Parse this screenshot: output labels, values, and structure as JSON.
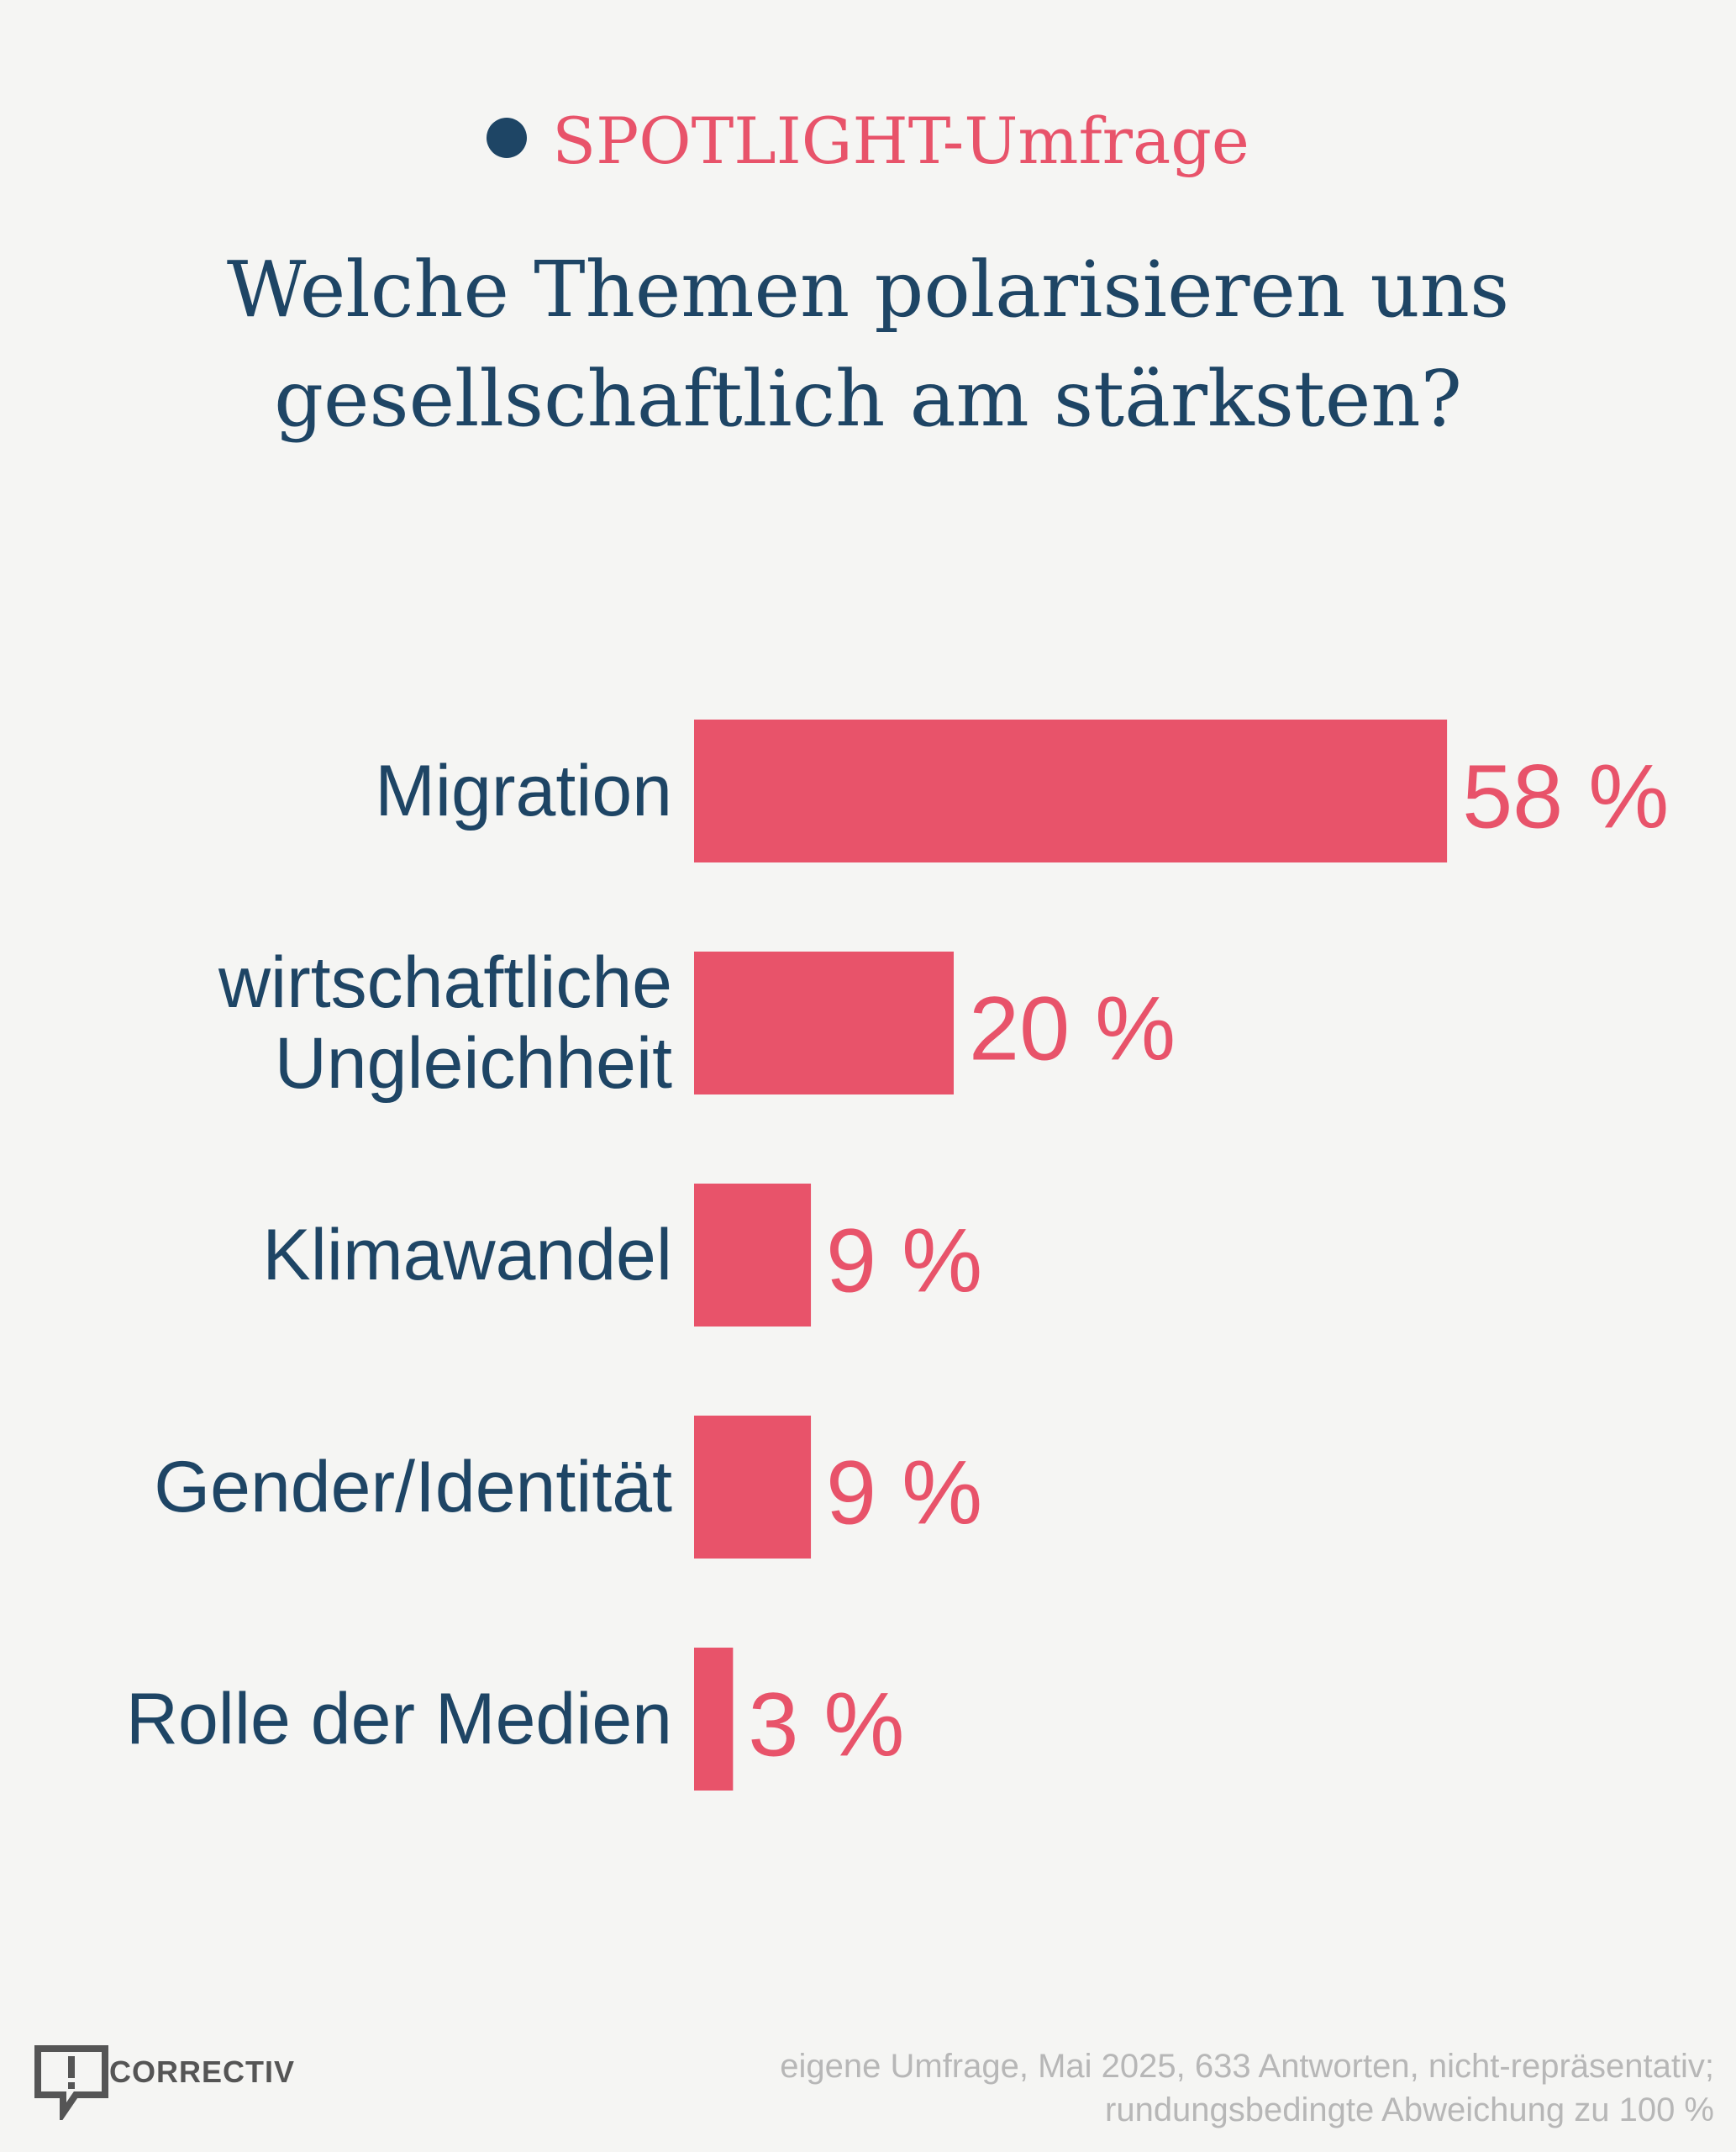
{
  "header": {
    "kicker": "SPOTLIGHT-Umfrage",
    "title_line1": "Welche Themen polarisieren uns",
    "title_line2": "gesellschaftlich am stärksten?"
  },
  "footer": {
    "source_line1": "eigene Umfrage, Mai 2025, 633 Antworten, nicht-repräsentativ;",
    "source_line2": "rundungsbedingte Abweichung zu 100 %",
    "logo_text": "CORRECTIV"
  },
  "colors": {
    "accent": "#e8536a",
    "text": "#1e4565",
    "muted": "#b7b7b7",
    "background": "#f5f5f3"
  },
  "chart_data": {
    "type": "bar",
    "orientation": "horizontal",
    "categories": [
      [
        "Migration"
      ],
      [
        "wirtschaftliche",
        "Ungleichheit"
      ],
      [
        "Klimawandel"
      ],
      [
        "Gender/Identität"
      ],
      [
        "Rolle der Medien"
      ]
    ],
    "values": [
      58,
      20,
      9,
      9,
      3
    ],
    "value_labels": [
      "58 %",
      "20 %",
      "9 %",
      "9 %",
      "3 %"
    ],
    "unit": "%",
    "grid": false,
    "axis_visible": false
  }
}
